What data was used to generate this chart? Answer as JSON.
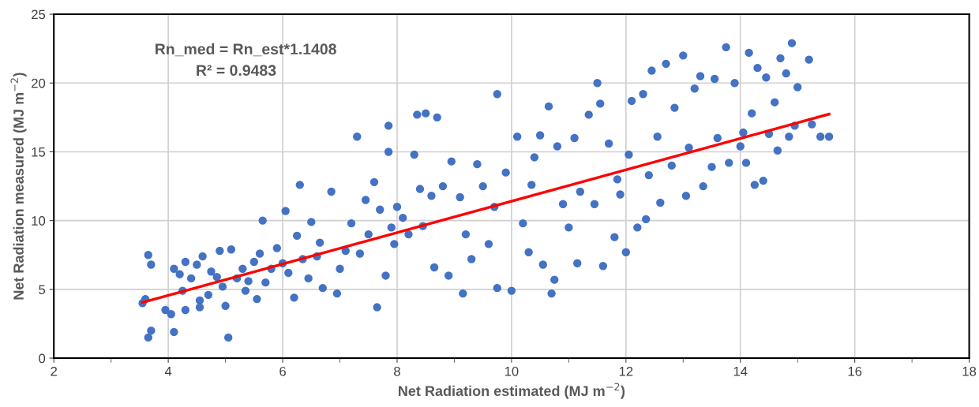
{
  "chart_data": {
    "type": "scatter",
    "xlabel": "Net Radiation estimated (MJ m$^{−2}$)",
    "ylabel": "Net Radiation measured (MJ m$^{−2}$)",
    "xlim": [
      2,
      18
    ],
    "ylim": [
      0,
      25
    ],
    "xticks": [
      2,
      4,
      6,
      8,
      10,
      12,
      14,
      16,
      18
    ],
    "yticks": [
      0,
      5,
      10,
      15,
      20,
      25
    ],
    "grid": true,
    "annotations": [
      "Rn_med = Rn_est*1.1408",
      "R² = 0.9483"
    ],
    "series": [
      {
        "marker": "circle",
        "color": "#4472c4",
        "x": [
          3.55,
          3.6,
          3.65,
          3.7,
          3.65,
          3.7,
          3.95,
          4.05,
          4.1,
          4.1,
          4.2,
          4.25,
          4.3,
          4.3,
          4.4,
          4.5,
          4.55,
          4.55,
          4.6,
          4.7,
          4.75,
          4.85,
          4.9,
          4.95,
          5.0,
          5.05,
          5.1,
          5.2,
          5.3,
          5.35,
          5.4,
          5.5,
          5.55,
          5.6,
          5.65,
          5.7,
          5.8,
          5.9,
          6.0,
          6.05,
          6.1,
          6.2,
          6.25,
          6.3,
          6.35,
          6.45,
          6.5,
          6.6,
          6.65,
          6.7,
          6.85,
          6.95,
          7.0,
          7.1,
          7.2,
          7.3,
          7.35,
          7.45,
          7.5,
          7.6,
          7.65,
          7.7,
          7.8,
          7.85,
          7.85,
          7.9,
          7.95,
          8.0,
          8.1,
          8.2,
          8.3,
          8.35,
          8.4,
          8.45,
          8.5,
          8.6,
          8.65,
          8.7,
          8.8,
          8.9,
          8.95,
          9.1,
          9.15,
          9.2,
          9.3,
          9.4,
          9.5,
          9.6,
          9.7,
          9.75,
          9.75,
          9.9,
          10.0,
          10.1,
          10.2,
          10.3,
          10.35,
          10.4,
          10.5,
          10.55,
          10.65,
          10.7,
          10.75,
          10.8,
          10.9,
          11.0,
          11.1,
          11.15,
          11.2,
          11.35,
          11.45,
          11.5,
          11.55,
          11.6,
          11.7,
          11.8,
          11.85,
          11.9,
          12.0,
          12.05,
          12.1,
          12.2,
          12.3,
          12.35,
          12.4,
          12.45,
          12.55,
          12.6,
          12.7,
          12.8,
          12.85,
          13.0,
          13.05,
          13.1,
          13.2,
          13.3,
          13.35,
          13.5,
          13.55,
          13.6,
          13.75,
          13.8,
          13.9,
          14.0,
          14.05,
          14.1,
          14.15,
          14.2,
          14.25,
          14.3,
          14.4,
          14.45,
          14.5,
          14.6,
          14.65,
          14.7,
          14.8,
          14.85,
          14.9,
          14.95,
          15.0,
          15.2,
          15.25,
          15.4,
          15.55
        ],
        "values": [
          4.0,
          4.3,
          1.5,
          2.0,
          7.5,
          6.8,
          3.5,
          3.2,
          1.9,
          6.5,
          6.1,
          4.9,
          3.5,
          7.0,
          5.8,
          6.8,
          4.2,
          3.7,
          7.4,
          4.6,
          6.3,
          5.9,
          7.8,
          5.2,
          3.8,
          1.5,
          7.9,
          5.8,
          6.5,
          4.9,
          5.6,
          7.0,
          4.3,
          7.6,
          10.0,
          5.5,
          6.5,
          8.0,
          6.9,
          10.7,
          6.2,
          4.4,
          8.9,
          12.6,
          7.2,
          5.8,
          9.9,
          7.4,
          8.4,
          5.1,
          12.1,
          4.7,
          6.5,
          7.8,
          9.8,
          16.1,
          7.6,
          11.5,
          9.0,
          12.8,
          3.7,
          10.8,
          6.0,
          15.0,
          16.9,
          9.5,
          8.3,
          11.0,
          10.2,
          9.0,
          14.8,
          17.7,
          12.3,
          9.6,
          17.8,
          11.8,
          6.6,
          17.5,
          12.5,
          6.0,
          14.3,
          11.7,
          4.7,
          9.0,
          7.2,
          14.1,
          12.5,
          8.3,
          11.0,
          19.2,
          5.1,
          13.5,
          4.9,
          16.1,
          9.8,
          7.7,
          12.6,
          14.6,
          16.2,
          6.8,
          18.3,
          4.7,
          5.7,
          15.4,
          11.2,
          9.5,
          16.0,
          6.9,
          12.1,
          17.7,
          11.2,
          20.0,
          18.5,
          6.7,
          15.6,
          8.8,
          13.0,
          11.9,
          7.7,
          14.8,
          18.7,
          9.5,
          19.2,
          10.1,
          13.3,
          20.9,
          16.1,
          11.3,
          21.4,
          14.0,
          18.2,
          22.0,
          11.8,
          15.3,
          19.6,
          20.5,
          12.5,
          13.9,
          20.3,
          16.0,
          22.6,
          14.2,
          20.0,
          15.4,
          16.4,
          14.2,
          22.2,
          17.8,
          12.6,
          21.1,
          12.9,
          20.4,
          16.3,
          18.6,
          15.1,
          21.8,
          20.7,
          16.1,
          22.9,
          16.9,
          19.7,
          21.7,
          17.0,
          16.1,
          16.1
        ]
      },
      {
        "type": "line",
        "color": "#ff0000",
        "x": [
          3.55,
          15.55
        ],
        "values": [
          4.05,
          17.74
        ]
      }
    ]
  }
}
